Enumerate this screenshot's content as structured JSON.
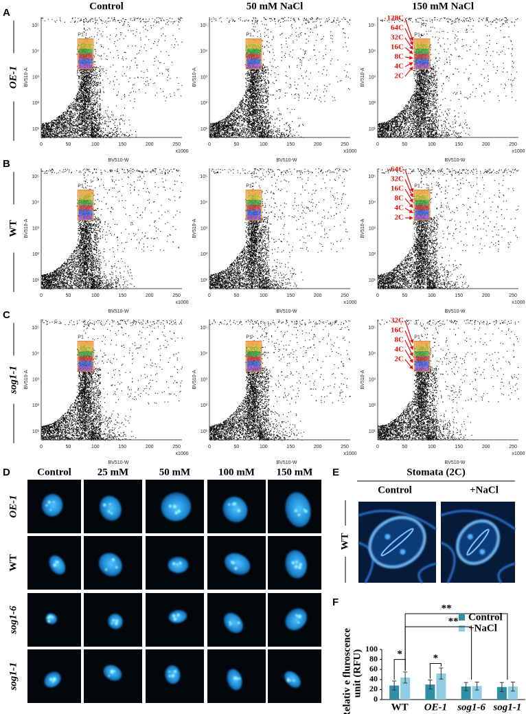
{
  "flow_cytometry": {
    "columns": [
      "Control",
      "50 mM NaCl",
      "150 mM NaCl"
    ],
    "rows": [
      {
        "panel": "A",
        "genotype": "OE-1",
        "ploidy": [
          "128C",
          "64C",
          "32C",
          "16C",
          "8C",
          "4C",
          "2C"
        ]
      },
      {
        "panel": "B",
        "genotype": "WT",
        "ploidy": [
          "64C",
          "32C",
          "16C",
          "8C",
          "4C",
          "2C"
        ]
      },
      {
        "panel": "C",
        "genotype": "sog1-1",
        "ploidy": [
          "32C",
          "16C",
          "8C",
          "4C",
          "2C"
        ]
      }
    ],
    "x_label": "BV510-W",
    "y_label": "BV510-A",
    "x_multiplier": "x1000",
    "xticks": [
      0,
      50,
      100,
      150,
      200,
      250
    ],
    "yticks": [
      "10⁵",
      "10⁴",
      "10³",
      "10²",
      "10¹"
    ],
    "gate": "P1"
  },
  "nuclei": {
    "panel": "D",
    "columns": [
      "Control",
      "25 mM",
      "50 mM",
      "100 mM",
      "150 mM"
    ],
    "rows": [
      "OE-1",
      "WT",
      "sog1-6",
      "sog1-1"
    ]
  },
  "stomata": {
    "panel": "E",
    "title": "Stomata (2C)",
    "columns": [
      "Control",
      "+NaCl"
    ],
    "row": "WT"
  },
  "chart_data": {
    "type": "bar",
    "panel": "F",
    "ylabel": [
      "Relativ e fluroscence",
      "unit (RFU)"
    ],
    "categories": [
      "WT",
      "OE-1",
      "sog1-6",
      "sog1-1"
    ],
    "series": [
      {
        "name": "Control",
        "color": "#2f8fa5",
        "values": [
          28,
          30,
          26,
          25
        ],
        "errors": [
          9,
          9,
          8,
          9
        ]
      },
      {
        "name": "+NaCl",
        "color": "#8ecde2",
        "values": [
          44,
          52,
          27,
          26
        ],
        "errors": [
          11,
          11,
          8,
          9
        ]
      }
    ],
    "ylim": [
      0,
      100
    ],
    "yticks": [
      0,
      20,
      40,
      60,
      80,
      100
    ],
    "annotations": [
      "*",
      "*",
      "**",
      "**"
    ]
  }
}
